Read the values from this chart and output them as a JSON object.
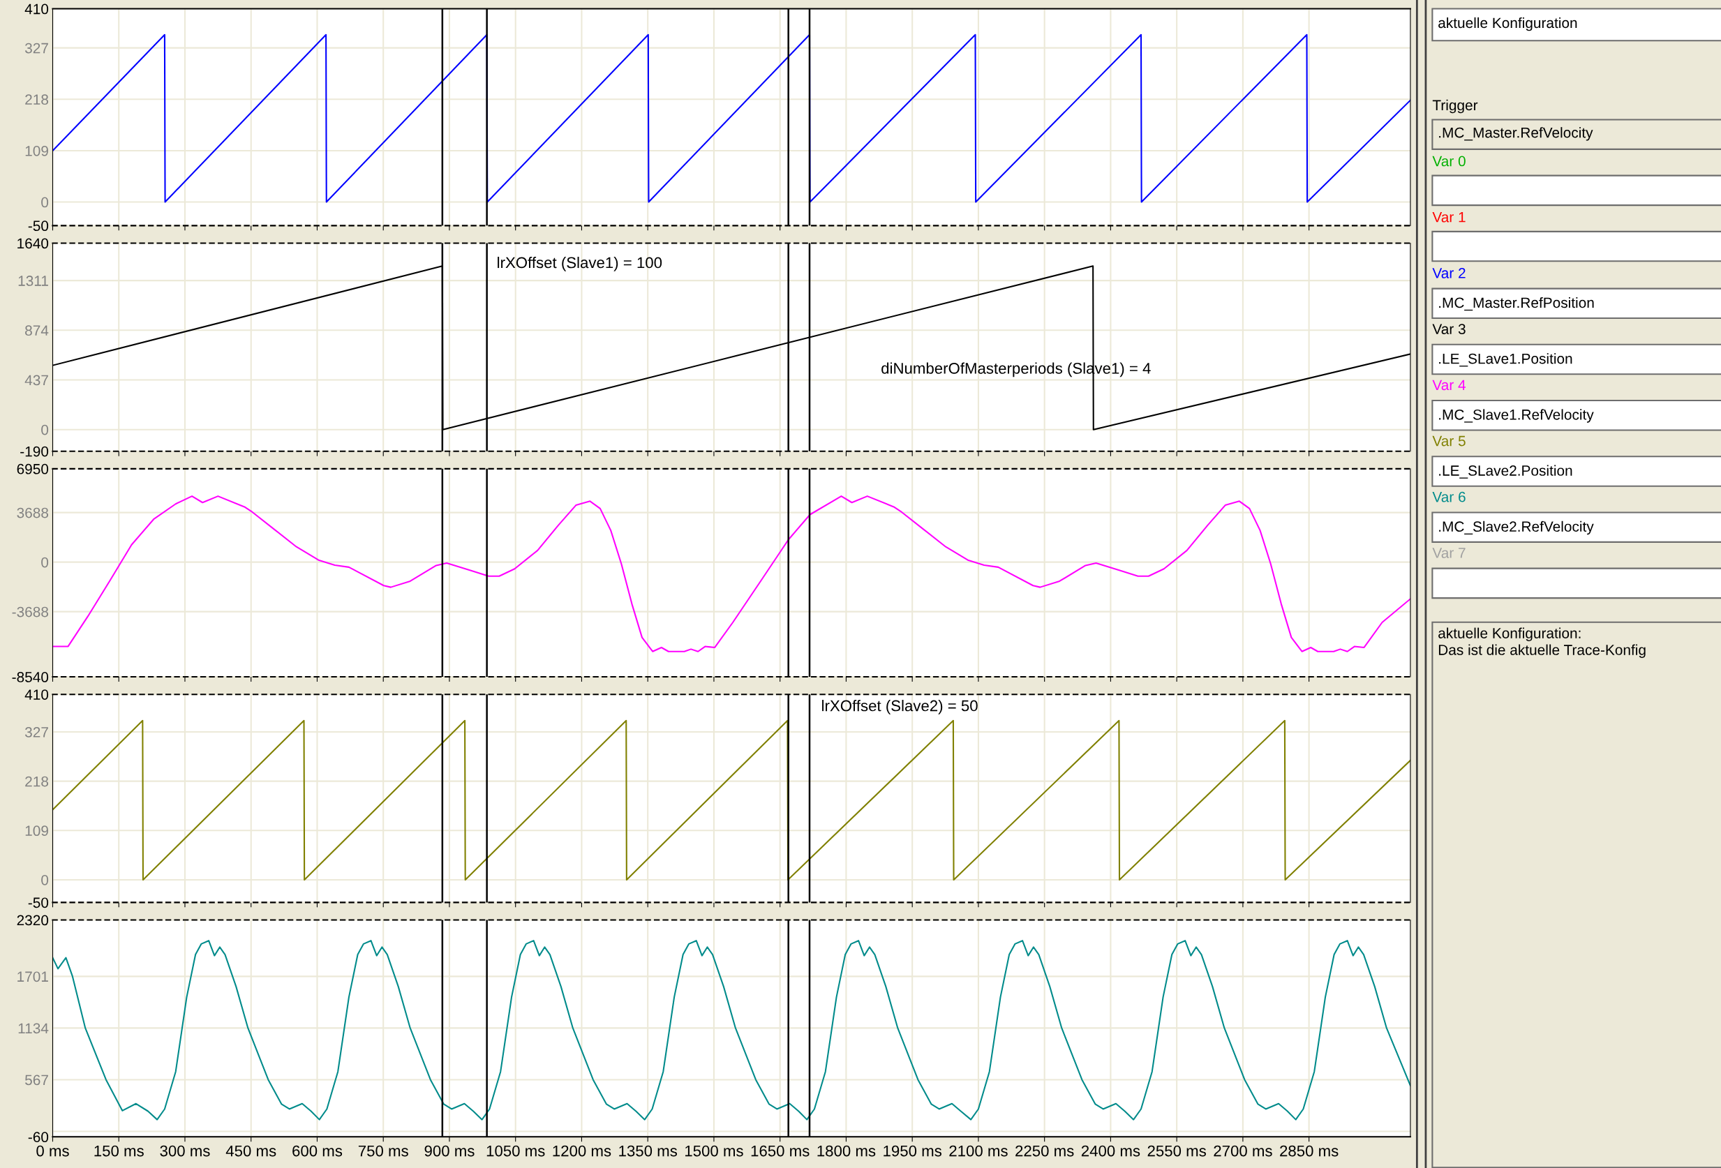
{
  "chart_data": [
    {
      "type": "line",
      "xlim": [
        0,
        3080
      ],
      "ylim": [
        -50,
        410
      ],
      "yticks": [
        410,
        327,
        218,
        109,
        0,
        -50
      ],
      "grid": true,
      "tick_labels": "y",
      "line_style": "solid",
      "xticks": [
        0,
        150,
        300,
        450,
        600,
        750,
        900,
        1050,
        1200,
        1350,
        1500,
        1650,
        1800,
        1950,
        2100,
        2250,
        2400,
        2550,
        2700,
        2850
      ],
      "ref_lines": [
        {
          "axis": "x",
          "value": 884,
          "color": "#000000"
        },
        {
          "axis": "x",
          "value": 985,
          "color": "#000000"
        },
        {
          "axis": "x",
          "value": 1669,
          "color": "#000000"
        },
        {
          "axis": "x",
          "value": 1717,
          "color": "#000000"
        }
      ],
      "series": [
        {
          "color": "#0000ff",
          "x": [
            0,
            254,
            255,
            620,
            621,
            985,
            986,
            1351,
            1352,
            1717,
            1718,
            2093,
            2094,
            2469,
            2470,
            2845,
            2846,
            3080
          ],
          "values": [
            109,
            355,
            0,
            355,
            0,
            355,
            0,
            355,
            0,
            355,
            0,
            355,
            0,
            355,
            0,
            355,
            0,
            216
          ]
        }
      ]
    },
    {
      "type": "line",
      "xlim": [
        0,
        3080
      ],
      "ylim": [
        -190,
        1640
      ],
      "yticks": [
        1640,
        1311,
        874,
        437,
        0,
        -190
      ],
      "grid": true,
      "tick_labels": "y",
      "line_style": "solid",
      "xticks": [
        0,
        150,
        300,
        450,
        600,
        750,
        900,
        1050,
        1200,
        1350,
        1500,
        1650,
        1800,
        1950,
        2100,
        2250,
        2400,
        2550,
        2700,
        2850
      ],
      "ref_lines": [
        {
          "axis": "x",
          "value": 884,
          "color": "#000000"
        },
        {
          "axis": "x",
          "value": 985,
          "color": "#000000"
        },
        {
          "axis": "x",
          "value": 1669,
          "color": "#000000"
        },
        {
          "axis": "x",
          "value": 1717,
          "color": "#000000"
        }
      ],
      "annotations": [
        "lrXOffset (Slave1) = 100",
        "diNumberOfMasterperiods (Slave1) = 4"
      ],
      "series": [
        {
          "color": "#000000",
          "x": [
            0,
            884,
            885,
            2360,
            2361,
            3080
          ],
          "values": [
            565,
            1439,
            0,
            1439,
            0,
            665
          ]
        }
      ]
    },
    {
      "type": "line",
      "xlim": [
        0,
        3080
      ],
      "ylim": [
        -8540,
        6950
      ],
      "yticks": [
        6950,
        3688,
        0,
        -3688,
        -8540
      ],
      "grid": true,
      "tick_labels": "y",
      "line_style": "solid",
      "xticks": [
        0,
        150,
        300,
        450,
        600,
        750,
        900,
        1050,
        1200,
        1350,
        1500,
        1650,
        1800,
        1950,
        2100,
        2250,
        2400,
        2550,
        2700,
        2850
      ],
      "ref_lines": [
        {
          "axis": "x",
          "value": 884,
          "color": "#000000"
        },
        {
          "axis": "x",
          "value": 985,
          "color": "#000000"
        },
        {
          "axis": "x",
          "value": 1669,
          "color": "#000000"
        },
        {
          "axis": "x",
          "value": 1717,
          "color": "#000000"
        }
      ],
      "series": [
        {
          "color": "#ff00ff",
          "x": [
            0,
            35,
            80,
            130,
            179,
            229,
            279,
            316,
            340,
            375,
            435,
            453,
            503,
            553,
            603,
            640,
            672,
            751,
            767,
            811,
            870,
            894,
            949,
            989,
            1013,
            1048,
            1100,
            1147,
            1187,
            1219,
            1242,
            1266,
            1290,
            1314,
            1337,
            1361,
            1381,
            1397,
            1433,
            1448,
            1464,
            1480,
            1502,
            1543,
            1607,
            1669,
            1718,
            1789,
            1813,
            1848,
            1908,
            1926,
            1976,
            2026,
            2076,
            2113,
            2145,
            2224,
            2240,
            2284,
            2343,
            2367,
            2422,
            2462,
            2486,
            2521,
            2573,
            2620,
            2660,
            2692,
            2715,
            2739,
            2763,
            2787,
            2810,
            2834,
            2854,
            2870,
            2906,
            2921,
            2937,
            2953,
            2975,
            3016,
            3080
          ],
          "values": [
            -6275,
            -6275,
            -4028,
            -1368,
            1292,
            3192,
            4332,
            4909,
            4436,
            4909,
            4112,
            3724,
            2432,
            1140,
            152,
            -228,
            -374,
            -1744,
            -1869,
            -1420,
            -249,
            -75,
            -623,
            -1047,
            -1047,
            -498,
            872,
            2741,
            4236,
            4535,
            3987,
            2367,
            -125,
            -3115,
            -5607,
            -6654,
            -6355,
            -6654,
            -6654,
            -6479,
            -6654,
            -6280,
            -6355,
            -4486,
            -1371,
            1670,
            3539,
            4909,
            4436,
            4909,
            4112,
            3724,
            2432,
            1140,
            152,
            -228,
            -374,
            -1744,
            -1869,
            -1420,
            -249,
            -75,
            -623,
            -1047,
            -1047,
            -498,
            872,
            2741,
            4236,
            4535,
            3987,
            2367,
            -125,
            -3115,
            -5607,
            -6654,
            -6355,
            -6654,
            -6654,
            -6479,
            -6654,
            -6280,
            -6355,
            -4486,
            -2736
          ]
        }
      ]
    },
    {
      "type": "line",
      "xlim": [
        0,
        3080
      ],
      "ylim": [
        -50,
        410
      ],
      "yticks": [
        410,
        327,
        218,
        109,
        0,
        -50
      ],
      "grid": true,
      "tick_labels": "y",
      "line_style": "solid",
      "xticks": [
        0,
        150,
        300,
        450,
        600,
        750,
        900,
        1050,
        1200,
        1350,
        1500,
        1650,
        1800,
        1950,
        2100,
        2250,
        2400,
        2550,
        2700,
        2850
      ],
      "ref_lines": [
        {
          "axis": "x",
          "value": 884,
          "color": "#000000"
        },
        {
          "axis": "x",
          "value": 985,
          "color": "#000000"
        },
        {
          "axis": "x",
          "value": 1669,
          "color": "#000000"
        },
        {
          "axis": "x",
          "value": 1717,
          "color": "#000000"
        }
      ],
      "annotations": [
        "lrXOffset (Slave2) = 50"
      ],
      "series": [
        {
          "color": "#808000",
          "x": [
            0,
            204,
            205,
            570,
            571,
            935,
            936,
            1301,
            1302,
            1667,
            1668,
            2043,
            2044,
            2419,
            2420,
            2795,
            2796,
            3080
          ],
          "values": [
            155,
            352,
            0,
            352,
            0,
            352,
            0,
            352,
            0,
            352,
            0,
            352,
            0,
            352,
            0,
            352,
            0,
            264
          ]
        }
      ]
    },
    {
      "type": "line",
      "xlim": [
        0,
        3080
      ],
      "ylim": [
        -60,
        2320
      ],
      "yticks": [
        2320,
        1701,
        1134,
        567,
        {
          "value": 0,
          "label": null
        },
        -60
      ],
      "grid": true,
      "line_style": "solid",
      "xticks": [
        {
          "value": 0,
          "label": "0 ms"
        },
        {
          "value": 150,
          "label": "150 ms"
        },
        {
          "value": 300,
          "label": "300 ms"
        },
        {
          "value": 450,
          "label": "450 ms"
        },
        {
          "value": 600,
          "label": "600 ms"
        },
        {
          "value": 750,
          "label": "750 ms"
        },
        {
          "value": 900,
          "label": "900 ms"
        },
        {
          "value": 1050,
          "label": "1050 ms"
        },
        {
          "value": 1200,
          "label": "1200 ms"
        },
        {
          "value": 1350,
          "label": "1350 ms"
        },
        {
          "value": 1500,
          "label": "1500 ms"
        },
        {
          "value": 1650,
          "label": "1650 ms"
        },
        {
          "value": 1800,
          "label": "1800 ms"
        },
        {
          "value": 1950,
          "label": "1950 ms"
        },
        {
          "value": 2100,
          "label": "2100 ms"
        },
        {
          "value": 2250,
          "label": "2250 ms"
        },
        {
          "value": 2400,
          "label": "2400 ms"
        },
        {
          "value": 2550,
          "label": "2550 ms"
        },
        {
          "value": 2700,
          "label": "2700 ms"
        },
        {
          "value": 2850,
          "label": "2850 ms"
        }
      ],
      "ref_lines": [
        {
          "axis": "x",
          "value": 884,
          "color": "#000000"
        },
        {
          "axis": "x",
          "value": 985,
          "color": "#000000"
        },
        {
          "axis": "x",
          "value": 1669,
          "color": "#000000"
        },
        {
          "axis": "x",
          "value": 1717,
          "color": "#000000"
        }
      ],
      "series": [
        {
          "color": "#008b8b",
          "x": [
            0,
            12,
            30,
            45,
            74,
            121,
            158,
            189,
            216,
            237,
            254,
            279,
            304,
            324,
            337,
            354,
            367,
            379,
            391,
            416,
            443,
            489,
            519,
            537,
            566,
            586,
            605,
            622,
            647,
            672,
            692,
            705,
            722,
            735,
            747,
            759,
            784,
            811,
            857,
            887,
            905,
            934,
            954,
            974,
            991,
            1016,
            1041,
            1061,
            1074,
            1091,
            1104,
            1116,
            1128,
            1153,
            1180,
            1226,
            1256,
            1274,
            1303,
            1323,
            1343,
            1360,
            1385,
            1410,
            1430,
            1443,
            1460,
            1473,
            1485,
            1497,
            1522,
            1549,
            1595,
            1625,
            1643,
            1672,
            1692,
            1711,
            1728,
            1753,
            1778,
            1798,
            1811,
            1828,
            1841,
            1853,
            1865,
            1890,
            1917,
            1963,
            1993,
            2011,
            2040,
            2060,
            2083,
            2100,
            2125,
            2150,
            2170,
            2183,
            2200,
            2213,
            2225,
            2237,
            2262,
            2289,
            2335,
            2365,
            2383,
            2412,
            2432,
            2452,
            2469,
            2494,
            2519,
            2539,
            2552,
            2569,
            2582,
            2594,
            2606,
            2631,
            2658,
            2704,
            2734,
            2752,
            2781,
            2801,
            2820,
            2837,
            2862,
            2887,
            2907,
            2920,
            2937,
            2950,
            2962,
            2974,
            2999,
            3026,
            3080
          ],
          "values": [
            1906,
            1785,
            1906,
            1701,
            1134,
            567,
            227,
            304,
            222,
            129,
            245,
            655,
            1473,
            1941,
            2057,
            2093,
            1929,
            2022,
            1941,
            1590,
            1134,
            567,
            300,
            245,
            304,
            222,
            129,
            245,
            655,
            1473,
            1941,
            2057,
            2093,
            1929,
            2022,
            1941,
            1590,
            1134,
            567,
            300,
            245,
            304,
            222,
            129,
            245,
            655,
            1473,
            1941,
            2057,
            2093,
            1929,
            2022,
            1941,
            1590,
            1134,
            567,
            300,
            245,
            304,
            222,
            129,
            245,
            655,
            1473,
            1941,
            2057,
            2093,
            1929,
            2022,
            1941,
            1590,
            1134,
            567,
            300,
            245,
            304,
            222,
            129,
            245,
            655,
            1473,
            1941,
            2057,
            2093,
            1929,
            2022,
            1941,
            1590,
            1134,
            567,
            300,
            245,
            304,
            222,
            129,
            245,
            655,
            1473,
            1941,
            2057,
            2093,
            1929,
            2022,
            1941,
            1590,
            1134,
            567,
            300,
            245,
            304,
            222,
            129,
            245,
            655,
            1473,
            1941,
            2057,
            2093,
            1929,
            2022,
            1941,
            1590,
            1134,
            567,
            300,
            245,
            304,
            222,
            129,
            245,
            655,
            1473,
            1941,
            2057,
            2093,
            1929,
            2022,
            1941,
            1590,
            1134,
            503
          ]
        }
      ]
    },
    {
      "type": "other",
      "annotations": [
        "aktuelle Konfiguration",
        "Trigger",
        ".MC_Master.RefVelocity",
        "Var 0",
        "Var 1",
        "Var 2",
        ".MC_Master.RefPosition",
        "Var 3",
        ".LE_SLave1.Position",
        "Var 4",
        ".MC_Slave1.RefVelocity",
        "Var 5",
        ".LE_SLave2.Position",
        "Var 6",
        ".MC_Slave2.RefVelocity",
        "Var 7",
        "aktuelle Konfiguration:\nDas ist die aktuelle Trace-Konfig"
      ],
      "colors": [
        "#000000",
        "#000000",
        "#000000",
        "#00b000",
        "#ff0000",
        "#0000ff",
        "#000000",
        "#000000",
        "#000000",
        "#ff00ff",
        "#000000",
        "#808000",
        "#000000",
        "#008b8b",
        "#000000",
        "#a0a0a0",
        "#000000"
      ]
    }
  ]
}
